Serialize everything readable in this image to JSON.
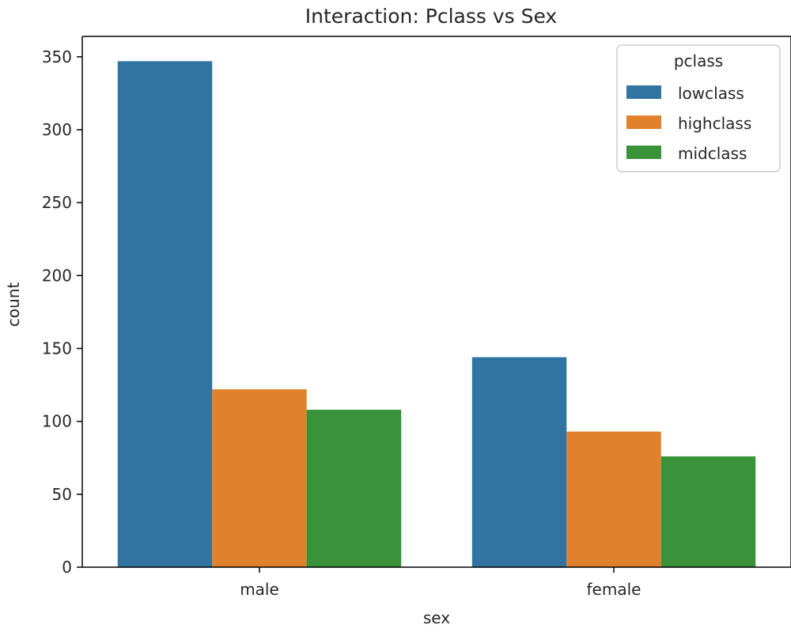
{
  "chart_data": {
    "type": "bar",
    "title": "Interaction: Pclass vs Sex",
    "xlabel": "sex",
    "ylabel": "count",
    "categories": [
      "male",
      "female"
    ],
    "series": [
      {
        "name": "lowclass",
        "color": "#3274a1",
        "values": [
          347,
          144
        ]
      },
      {
        "name": "highclass",
        "color": "#e1812c",
        "values": [
          122,
          93
        ]
      },
      {
        "name": "midclass",
        "color": "#3a923a",
        "values": [
          108,
          76
        ]
      }
    ],
    "ylim": [
      0,
      364
    ],
    "yticks": [
      0,
      50,
      100,
      150,
      200,
      250,
      300,
      350
    ],
    "ytick_labels": [
      "0",
      "50",
      "100",
      "150",
      "200",
      "250",
      "300",
      "350"
    ],
    "grid": false,
    "legend": {
      "title": "pclass",
      "position": "top-right"
    }
  }
}
